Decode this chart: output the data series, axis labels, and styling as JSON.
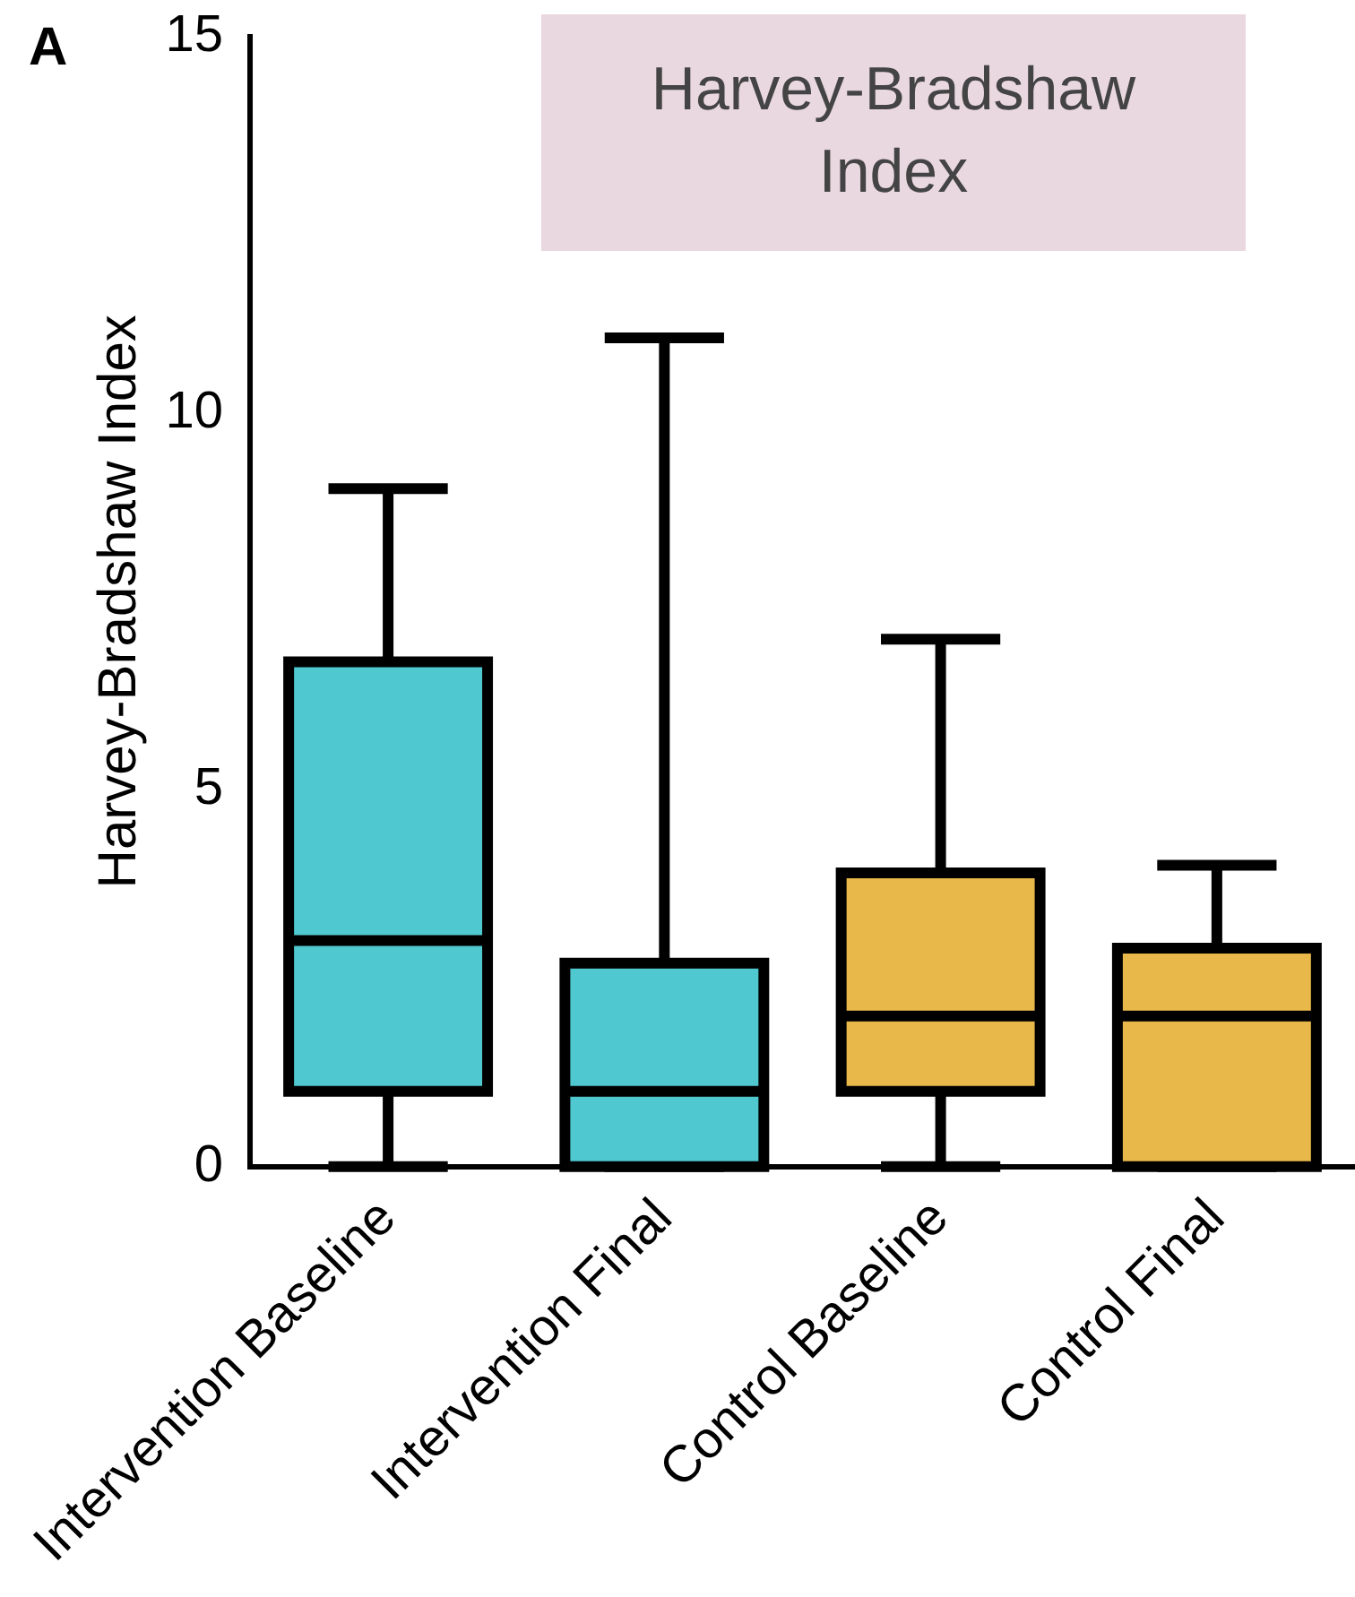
{
  "chart_data": {
    "type": "box",
    "title": "Harvey-Bradshaw Index",
    "ylabel": "Harvey-Bradshaw Index",
    "categories": [
      "Intervention Baseline",
      "Intervention Final",
      "Control Baseline",
      "Control Final"
    ],
    "colors": [
      "#4fc8d0",
      "#4fc8d0",
      "#e8b84a",
      "#e8b84a"
    ],
    "boxes": [
      {
        "low": 0,
        "q1": 1,
        "median": 3,
        "q3": 6.7,
        "high": 9
      },
      {
        "low": 0,
        "q1": 0,
        "median": 1,
        "q3": 2.7,
        "high": 11
      },
      {
        "low": 0,
        "q1": 1,
        "median": 2,
        "q3": 3.9,
        "high": 7
      },
      {
        "low": 0,
        "q1": 0,
        "median": 2,
        "q3": 2.9,
        "high": 4
      }
    ],
    "ylim": [
      0,
      15
    ],
    "yticks": [
      0,
      5,
      10,
      15
    ],
    "grid": false,
    "annotations": [
      "A"
    ]
  }
}
